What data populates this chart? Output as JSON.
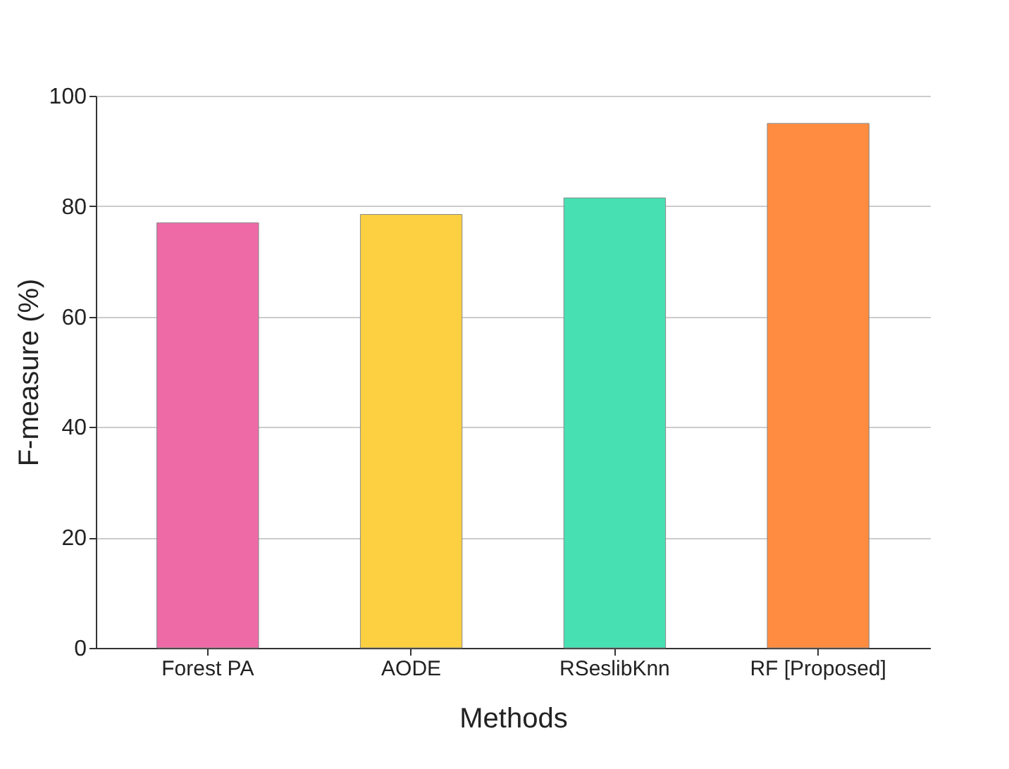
{
  "chart_data": {
    "type": "bar",
    "xlabel": "Methods",
    "ylabel": "F-measure (%)",
    "categories": [
      "Forest PA",
      "AODE",
      "RSeslibKnn",
      "RF [Proposed]"
    ],
    "values": [
      77,
      78.5,
      81.5,
      95
    ],
    "colors": [
      "#ee6aa7",
      "#fdd041",
      "#46e0b3",
      "#ff8c40"
    ],
    "ylim": [
      0,
      100
    ],
    "yticks": [
      0,
      20,
      40,
      60,
      80,
      100
    ],
    "grid": "y"
  }
}
